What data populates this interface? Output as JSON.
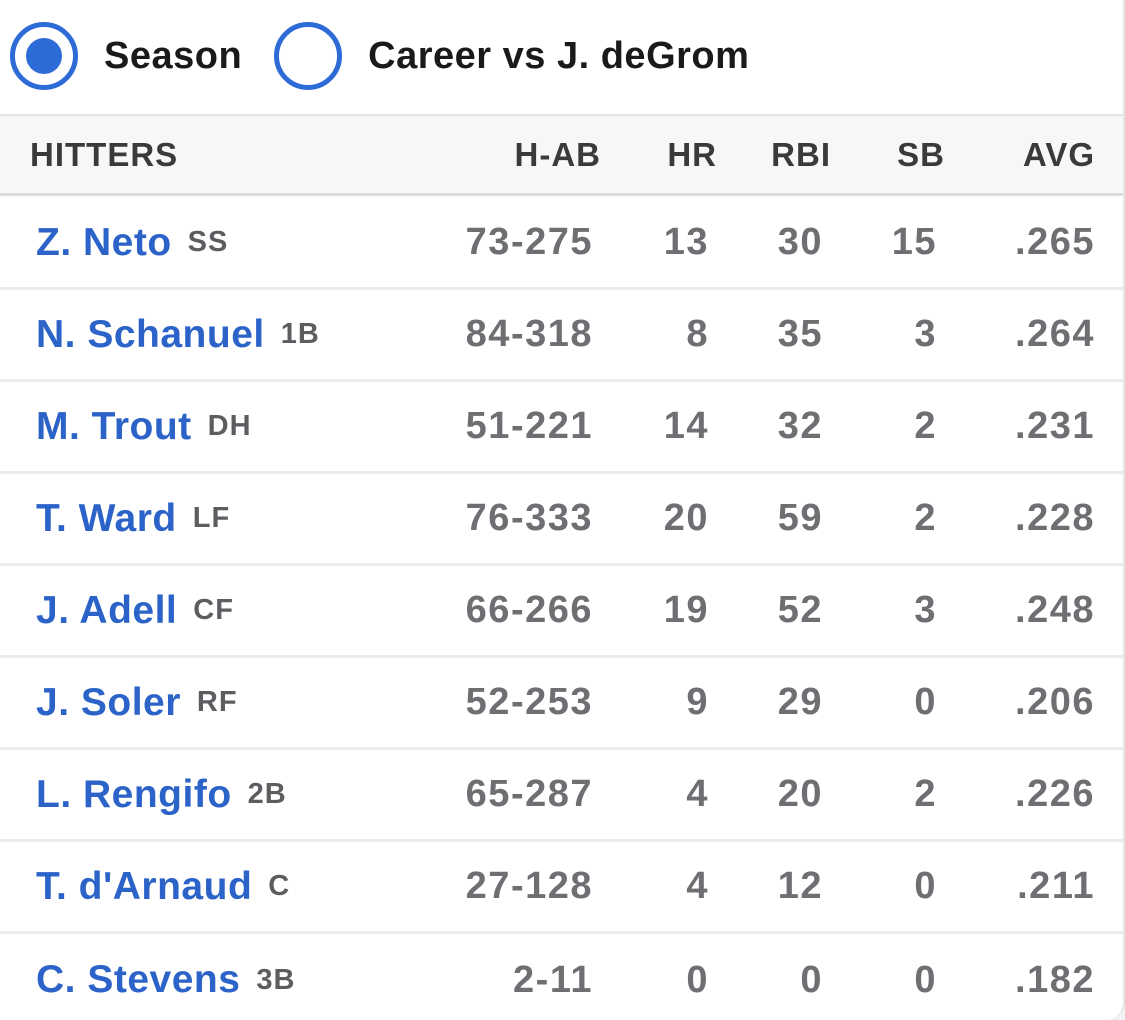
{
  "toggle": {
    "options": [
      {
        "label": "Season",
        "selected": true
      },
      {
        "label": "Career vs J. deGrom",
        "selected": false
      }
    ]
  },
  "table": {
    "headers": {
      "hitters": "HITTERS",
      "hab": "H-AB",
      "hr": "HR",
      "rbi": "RBI",
      "sb": "SB",
      "avg": "AVG"
    },
    "rows": [
      {
        "name": "Z. Neto",
        "pos": "SS",
        "hab": "73-275",
        "hr": "13",
        "rbi": "30",
        "sb": "15",
        "avg": ".265"
      },
      {
        "name": "N. Schanuel",
        "pos": "1B",
        "hab": "84-318",
        "hr": "8",
        "rbi": "35",
        "sb": "3",
        "avg": ".264"
      },
      {
        "name": "M. Trout",
        "pos": "DH",
        "hab": "51-221",
        "hr": "14",
        "rbi": "32",
        "sb": "2",
        "avg": ".231"
      },
      {
        "name": "T. Ward",
        "pos": "LF",
        "hab": "76-333",
        "hr": "20",
        "rbi": "59",
        "sb": "2",
        "avg": ".228"
      },
      {
        "name": "J. Adell",
        "pos": "CF",
        "hab": "66-266",
        "hr": "19",
        "rbi": "52",
        "sb": "3",
        "avg": ".248"
      },
      {
        "name": "J. Soler",
        "pos": "RF",
        "hab": "52-253",
        "hr": "9",
        "rbi": "29",
        "sb": "0",
        "avg": ".206"
      },
      {
        "name": "L. Rengifo",
        "pos": "2B",
        "hab": "65-287",
        "hr": "4",
        "rbi": "20",
        "sb": "2",
        "avg": ".226"
      },
      {
        "name": "T. d'Arnaud",
        "pos": "C",
        "hab": "27-128",
        "hr": "4",
        "rbi": "12",
        "sb": "0",
        "avg": ".211"
      },
      {
        "name": "C. Stevens",
        "pos": "3B",
        "hab": "2-11",
        "hr": "0",
        "rbi": "0",
        "sb": "0",
        "avg": ".182"
      }
    ]
  },
  "colors": {
    "accent": "#2d6bd6",
    "link": "#2b63c9",
    "stat_text": "#6f6f73"
  }
}
